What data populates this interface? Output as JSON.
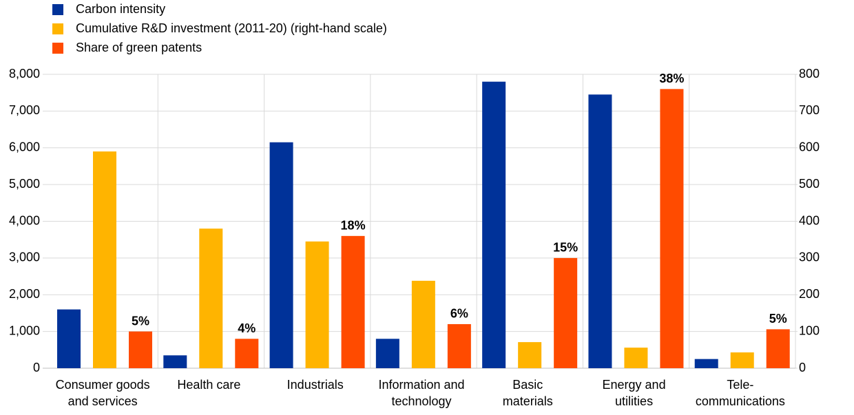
{
  "chart_data": {
    "type": "bar",
    "categories": [
      "Consumer goods\nand services",
      "Health care",
      "Industrials",
      "Information and\ntechnology",
      "Basic\nmaterials",
      "Energy and\nutilities",
      "Tele-\ncommunications"
    ],
    "series": [
      {
        "name": "Carbon intensity",
        "color": "#003299",
        "values": [
          1600,
          350,
          6150,
          800,
          7800,
          7450,
          250
        ]
      },
      {
        "name": "Cumulative R&D investment (2011-20) (right-hand scale)",
        "color": "#ffb400",
        "axis": "y2",
        "values": [
          590,
          380,
          345,
          238,
          71,
          56,
          43
        ]
      },
      {
        "name": "Share of green patents",
        "color": "#ff4b00",
        "axis": "y3",
        "values": [
          5,
          4,
          18,
          6,
          15,
          38,
          5.3
        ],
        "value_labels": [
          "5%",
          "4%",
          "18%",
          "6%",
          "15%",
          "38%",
          "5%"
        ]
      }
    ],
    "ylim": [
      0,
      8000
    ],
    "yticks": [
      0,
      {
        "value": 1000,
        "label": "1,000"
      },
      {
        "value": 2000,
        "label": "2,000"
      },
      {
        "value": 3000,
        "label": "3,000"
      },
      {
        "value": 4000,
        "label": "4,000"
      },
      {
        "value": 5000,
        "label": "5,000"
      },
      {
        "value": 6000,
        "label": "6,000"
      },
      {
        "value": 7000,
        "label": "7,000"
      },
      {
        "value": 8000,
        "label": "8,000"
      }
    ],
    "y2lim": [
      0,
      800
    ],
    "y2ticks": [
      0,
      100,
      200,
      300,
      400,
      500,
      600,
      700,
      800
    ],
    "y3lim": [
      0,
      40
    ],
    "grid": true,
    "legend": "top-left"
  }
}
